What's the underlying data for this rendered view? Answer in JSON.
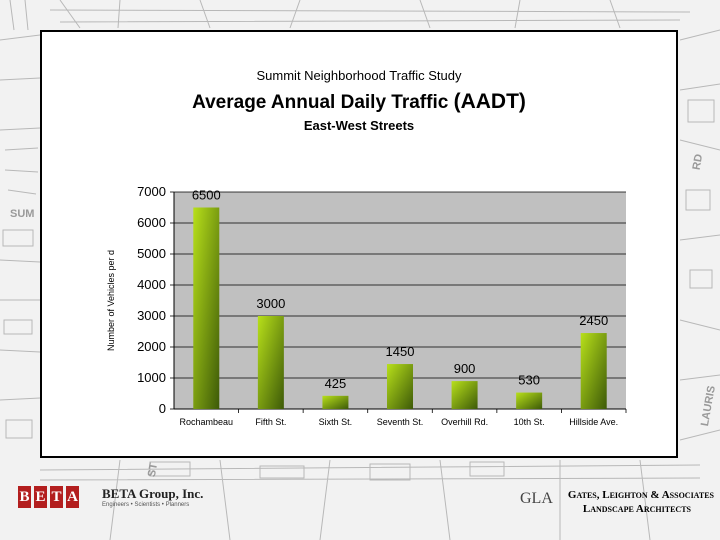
{
  "map": {
    "label_sum": "SUM",
    "label_rd": "RD",
    "label_laur": "LAURIS",
    "label_st": "ST"
  },
  "titles": {
    "line1": "Summit Neighborhood Traffic Study",
    "line2_main": "Average Annual Daily Traffic ",
    "line2_paren": "(AADT)",
    "line3": "East-West Streets"
  },
  "chart_data": {
    "type": "bar",
    "title": "Average Annual Daily Traffic (AADT)",
    "subtitle": "East-West Streets",
    "xlabel": "",
    "ylabel": "Number of Vehicles per d",
    "categories": [
      "Rochambeau",
      "Fifth St.",
      "Sixth St.",
      "Seventh St.",
      "Overhill Rd.",
      "10th St.",
      "Hillside Ave."
    ],
    "values": [
      6500,
      3000,
      425,
      1450,
      900,
      530,
      2450
    ],
    "data_labels": [
      "6500",
      "3000",
      "425",
      "1450",
      "900",
      "530",
      "2450"
    ],
    "ylim": [
      0,
      7000
    ],
    "yticks": [
      0,
      1000,
      2000,
      3000,
      4000,
      5000,
      6000,
      7000
    ],
    "ytick_labels": [
      "0",
      "1000",
      "2000",
      "3000",
      "4000",
      "5000",
      "6000",
      "7000"
    ],
    "grid": true,
    "legend": "none",
    "colors": {
      "bar_light": "#b8e01a",
      "bar_dark": "#3d5a08",
      "plot_bg": "#c0c0c0"
    }
  },
  "footer": {
    "beta_letters": [
      "B",
      "E",
      "T",
      "A"
    ],
    "beta_name": "BETA Group, Inc.",
    "beta_tagline": "Engineers • Scientists • Planners",
    "gla_logo": "GLA",
    "gla_line1": "Gates, Leighton & Associates",
    "gla_line2": "Landscape Architects"
  }
}
